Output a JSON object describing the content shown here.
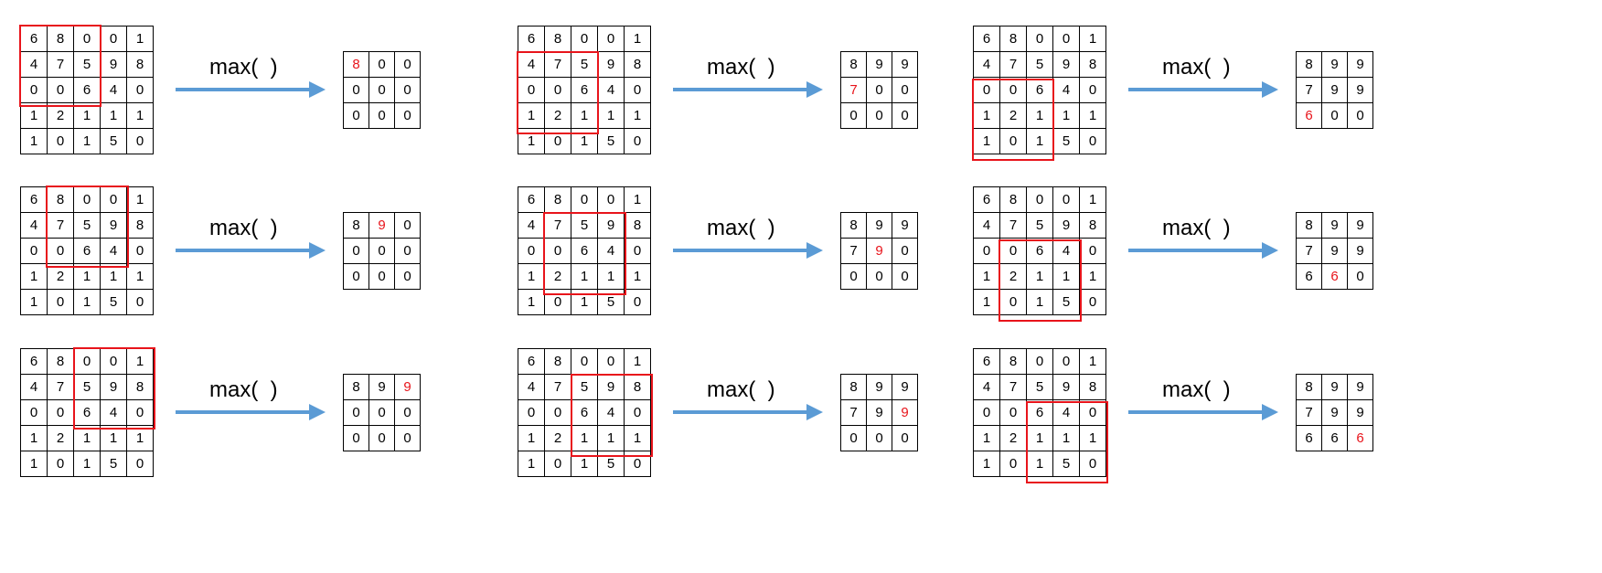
{
  "operator_label": "max(  )",
  "input_grid": [
    [
      "6",
      "8",
      "0",
      "0",
      "1"
    ],
    [
      "4",
      "7",
      "5",
      "9",
      "8"
    ],
    [
      "0",
      "0",
      "6",
      "4",
      "0"
    ],
    [
      "1",
      "2",
      "1",
      "1",
      "1"
    ],
    [
      "1",
      "0",
      "1",
      "5",
      "0"
    ]
  ],
  "colors": {
    "window": "#e8141b",
    "highlight_text": "#e8141b",
    "arrow": "#5b9bd5",
    "grid_line": "#000000"
  },
  "steps": [
    {
      "window": [
        0,
        0
      ],
      "highlight": [
        0,
        0
      ],
      "output": [
        [
          "8",
          "0",
          "0"
        ],
        [
          "0",
          "0",
          "0"
        ],
        [
          "0",
          "0",
          "0"
        ]
      ]
    },
    {
      "window": [
        1,
        0
      ],
      "highlight": [
        1,
        0
      ],
      "output": [
        [
          "8",
          "9",
          "9"
        ],
        [
          "7",
          "0",
          "0"
        ],
        [
          "0",
          "0",
          "0"
        ]
      ]
    },
    {
      "window": [
        2,
        0
      ],
      "highlight": [
        2,
        0
      ],
      "output": [
        [
          "8",
          "9",
          "9"
        ],
        [
          "7",
          "9",
          "9"
        ],
        [
          "6",
          "0",
          "0"
        ]
      ]
    },
    {
      "window": [
        0,
        1
      ],
      "highlight": [
        0,
        1
      ],
      "output": [
        [
          "8",
          "9",
          "0"
        ],
        [
          "0",
          "0",
          "0"
        ],
        [
          "0",
          "0",
          "0"
        ]
      ]
    },
    {
      "window": [
        1,
        1
      ],
      "highlight": [
        1,
        1
      ],
      "output": [
        [
          "8",
          "9",
          "9"
        ],
        [
          "7",
          "9",
          "0"
        ],
        [
          "0",
          "0",
          "0"
        ]
      ]
    },
    {
      "window": [
        2,
        1
      ],
      "highlight": [
        2,
        1
      ],
      "output": [
        [
          "8",
          "9",
          "9"
        ],
        [
          "7",
          "9",
          "9"
        ],
        [
          "6",
          "6",
          "0"
        ]
      ]
    },
    {
      "window": [
        0,
        2
      ],
      "highlight": [
        0,
        2
      ],
      "output": [
        [
          "8",
          "9",
          "9"
        ],
        [
          "0",
          "0",
          "0"
        ],
        [
          "0",
          "0",
          "0"
        ]
      ]
    },
    {
      "window": [
        1,
        2
      ],
      "highlight": [
        1,
        2
      ],
      "output": [
        [
          "8",
          "9",
          "9"
        ],
        [
          "7",
          "9",
          "9"
        ],
        [
          "0",
          "0",
          "0"
        ]
      ]
    },
    {
      "window": [
        2,
        2
      ],
      "highlight": [
        2,
        2
      ],
      "output": [
        [
          "8",
          "9",
          "9"
        ],
        [
          "7",
          "9",
          "9"
        ],
        [
          "6",
          "6",
          "6"
        ]
      ]
    }
  ]
}
